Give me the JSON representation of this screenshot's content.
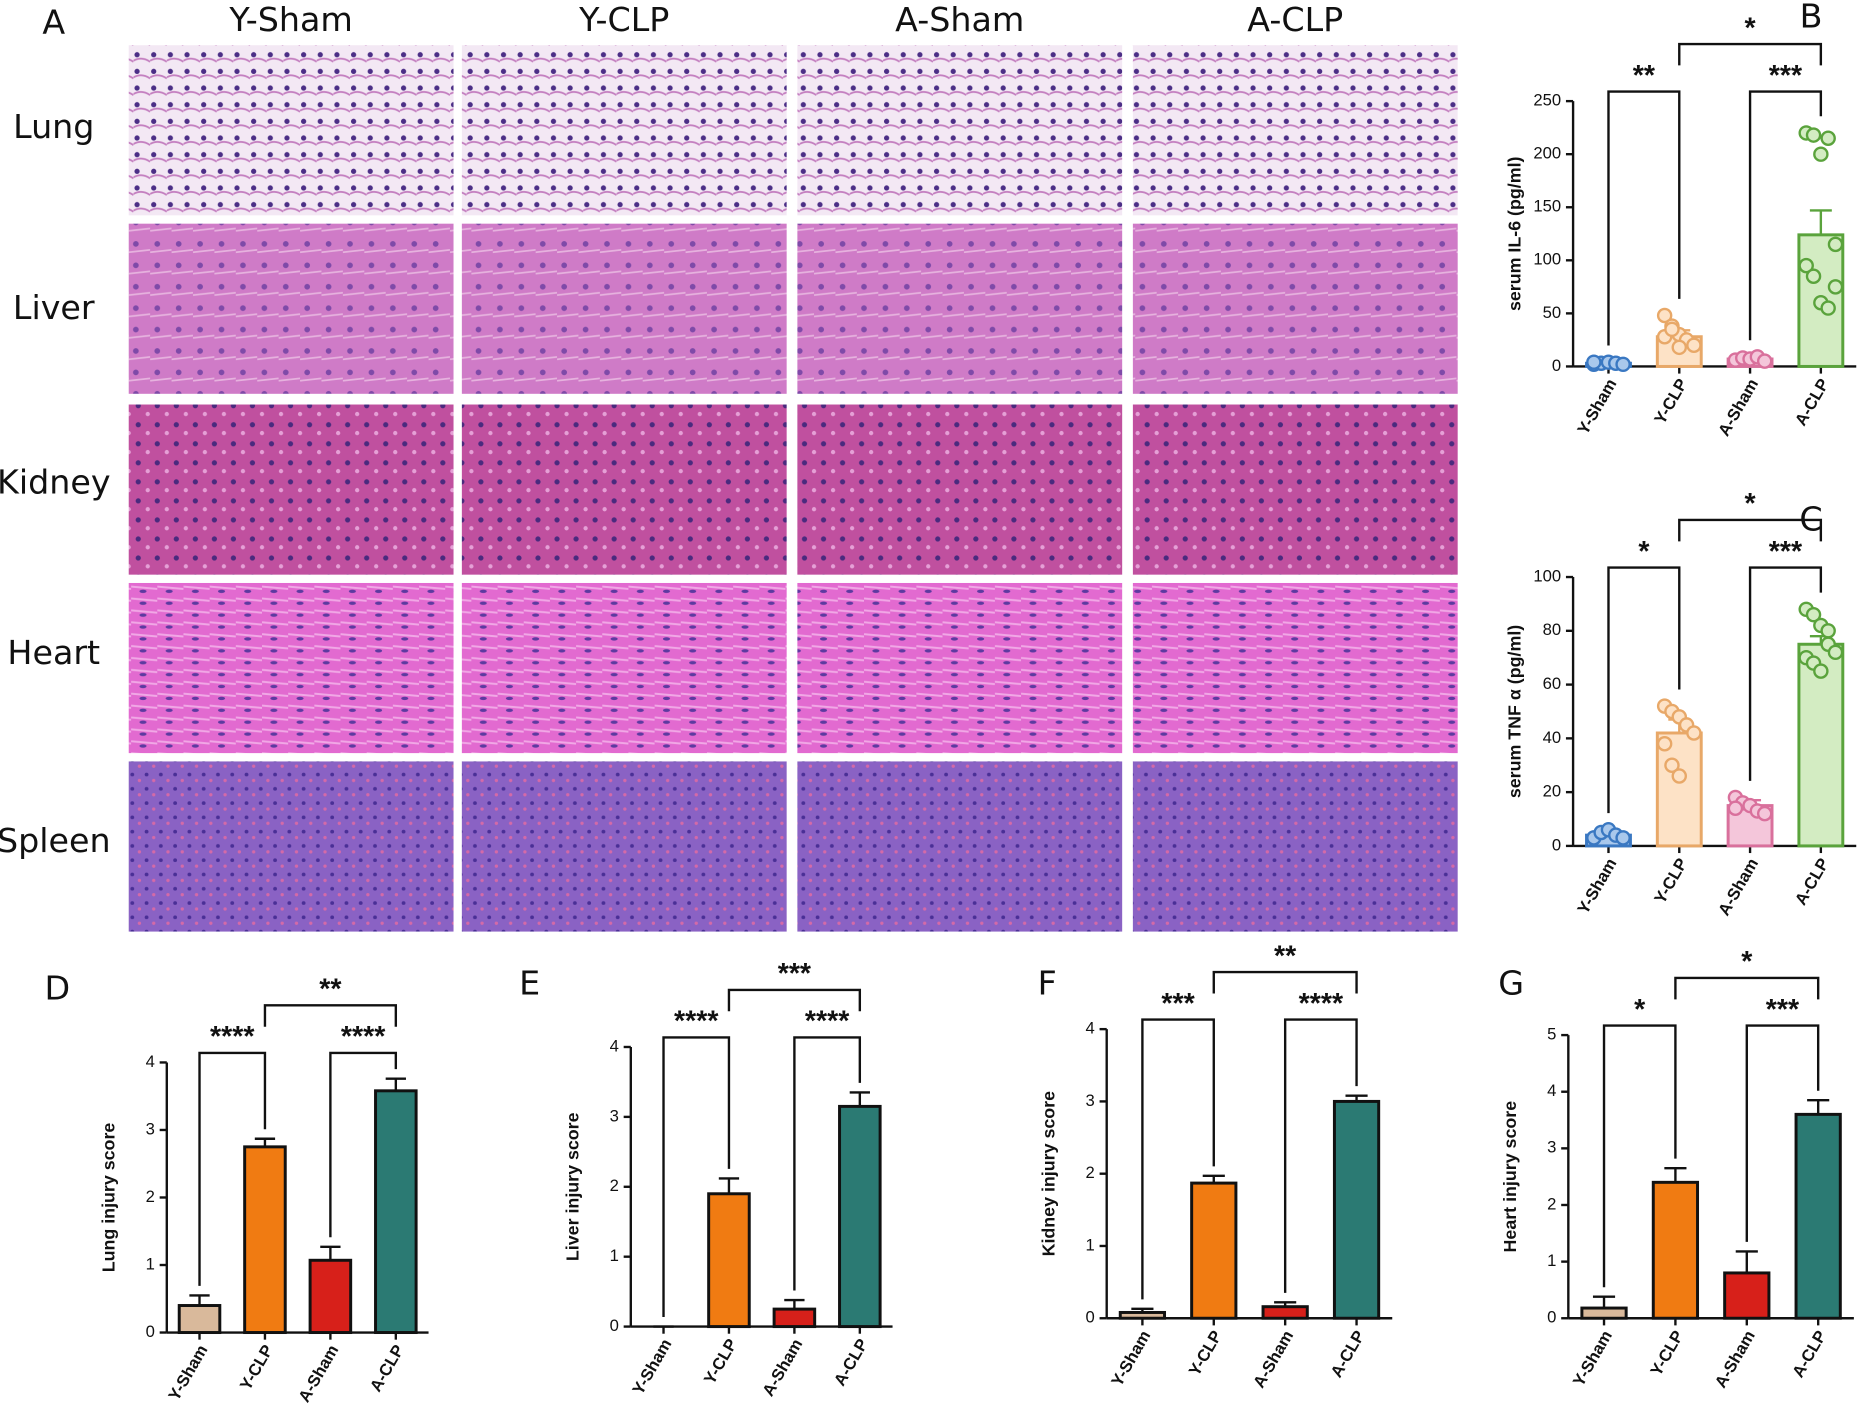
{
  "histology": {
    "label": "A",
    "columns": [
      "Y-Sham",
      "Y-CLP",
      "A-Sham",
      "A-CLP"
    ],
    "rows": [
      "Lung",
      "Liver",
      "Kidney",
      "Heart",
      "Spleen"
    ]
  },
  "chart_data": [
    {
      "type": "bar",
      "label": "B",
      "ylabel": "serum IL-6 (pg/ml)",
      "categories": [
        "Y-Sham",
        "Y-CLP",
        "A-Sham",
        "A-CLP"
      ],
      "values": [
        3,
        28,
        7,
        124
      ],
      "errors": [
        1,
        6,
        1,
        23
      ],
      "points": [
        [
          2,
          3,
          4,
          3,
          2,
          4
        ],
        [
          48,
          38,
          30,
          25,
          20,
          28,
          35,
          18
        ],
        [
          6,
          8,
          7,
          9,
          5
        ],
        [
          220,
          218,
          200,
          215,
          115,
          95,
          85,
          60,
          55,
          75
        ]
      ],
      "colors": [
        "#3a78c2",
        "#e8a868",
        "#d9709c",
        "#5aa33c"
      ],
      "fills": [
        "#a9c8ec",
        "#fde2c6",
        "#f4c6da",
        "#d3ecc2"
      ],
      "ylim": [
        0,
        250
      ],
      "yticks": [
        0,
        50,
        100,
        150,
        200,
        250
      ],
      "significance": [
        {
          "pair": [
            "Y-Sham",
            "Y-CLP"
          ],
          "label": "**"
        },
        {
          "pair": [
            "A-Sham",
            "A-CLP"
          ],
          "label": "***"
        },
        {
          "pair": [
            "Y-CLP",
            "A-CLP"
          ],
          "label": "*"
        }
      ]
    },
    {
      "type": "bar",
      "label": "C",
      "ylabel": "serum TNF α  (pg/ml)",
      "categories": [
        "Y-Sham",
        "Y-CLP",
        "A-Sham",
        "A-CLP"
      ],
      "values": [
        4,
        42,
        15,
        75
      ],
      "errors": [
        1,
        5,
        2,
        3
      ],
      "points": [
        [
          3,
          5,
          6,
          4,
          3
        ],
        [
          52,
          50,
          48,
          45,
          42,
          38,
          30,
          26
        ],
        [
          18,
          16,
          15,
          13,
          12,
          14
        ],
        [
          88,
          86,
          82,
          75,
          72,
          70,
          68,
          65,
          80
        ]
      ],
      "colors": [
        "#3a78c2",
        "#e8a868",
        "#d9709c",
        "#5aa33c"
      ],
      "fills": [
        "#a9c8ec",
        "#fde2c6",
        "#f4c6da",
        "#d3ecc2"
      ],
      "ylim": [
        0,
        100
      ],
      "yticks": [
        0,
        20,
        40,
        60,
        80,
        100
      ],
      "significance": [
        {
          "pair": [
            "Y-Sham",
            "Y-CLP"
          ],
          "label": "*"
        },
        {
          "pair": [
            "A-Sham",
            "A-CLP"
          ],
          "label": "***"
        },
        {
          "pair": [
            "Y-CLP",
            "A-CLP"
          ],
          "label": "*"
        }
      ]
    },
    {
      "type": "bar",
      "label": "D",
      "ylabel": "Lung injury score",
      "categories": [
        "Y-Sham",
        "Y-CLP",
        "A-Sham",
        "A-CLP"
      ],
      "values": [
        0.4,
        2.75,
        1.07,
        3.58
      ],
      "errors": [
        0.15,
        0.12,
        0.2,
        0.18
      ],
      "colors": [
        "#d9b99b",
        "#f07b12",
        "#d7201a",
        "#2b7a73"
      ],
      "edgecolor": "#111111",
      "ylim": [
        0,
        4
      ],
      "yticks": [
        0,
        1,
        2,
        3,
        4
      ],
      "significance": [
        {
          "pair": [
            "Y-Sham",
            "Y-CLP"
          ],
          "label": "****"
        },
        {
          "pair": [
            "A-Sham",
            "A-CLP"
          ],
          "label": "****"
        },
        {
          "pair": [
            "Y-CLP",
            "A-CLP"
          ],
          "label": "**"
        }
      ]
    },
    {
      "type": "bar",
      "label": "E",
      "ylabel": "Liver injury score",
      "categories": [
        "Y-Sham",
        "Y-CLP",
        "A-Sham",
        "A-CLP"
      ],
      "values": [
        0,
        1.9,
        0.25,
        3.15
      ],
      "errors": [
        0,
        0.22,
        0.13,
        0.2
      ],
      "colors": [
        "#d9b99b",
        "#f07b12",
        "#d7201a",
        "#2b7a73"
      ],
      "edgecolor": "#111111",
      "ylim": [
        0,
        4
      ],
      "yticks": [
        0,
        1,
        2,
        3,
        4
      ],
      "significance": [
        {
          "pair": [
            "Y-Sham",
            "Y-CLP"
          ],
          "label": "****"
        },
        {
          "pair": [
            "A-Sham",
            "A-CLP"
          ],
          "label": "****"
        },
        {
          "pair": [
            "Y-CLP",
            "A-CLP"
          ],
          "label": "***"
        }
      ]
    },
    {
      "type": "bar",
      "label": "F",
      "ylabel": "Kidney injury score",
      "categories": [
        "Y-Sham",
        "Y-CLP",
        "A-Sham",
        "A-CLP"
      ],
      "values": [
        0.08,
        1.87,
        0.16,
        3.0
      ],
      "errors": [
        0.05,
        0.1,
        0.06,
        0.08
      ],
      "colors": [
        "#d9b99b",
        "#f07b12",
        "#d7201a",
        "#2b7a73"
      ],
      "edgecolor": "#111111",
      "ylim": [
        0,
        4
      ],
      "yticks": [
        0,
        1,
        2,
        3,
        4
      ],
      "significance": [
        {
          "pair": [
            "Y-Sham",
            "Y-CLP"
          ],
          "label": "***"
        },
        {
          "pair": [
            "A-Sham",
            "A-CLP"
          ],
          "label": "****"
        },
        {
          "pair": [
            "Y-CLP",
            "A-CLP"
          ],
          "label": "**"
        }
      ]
    },
    {
      "type": "bar",
      "label": "G",
      "ylabel": "Heart injury score",
      "categories": [
        "Y-Sham",
        "Y-CLP",
        "A-Sham",
        "A-CLP"
      ],
      "values": [
        0.18,
        2.4,
        0.8,
        3.6
      ],
      "errors": [
        0.2,
        0.25,
        0.38,
        0.25
      ],
      "colors": [
        "#d9b99b",
        "#f07b12",
        "#d7201a",
        "#2b7a73"
      ],
      "edgecolor": "#111111",
      "ylim": [
        0,
        5
      ],
      "yticks": [
        0,
        1,
        2,
        3,
        4,
        5
      ],
      "significance": [
        {
          "pair": [
            "Y-Sham",
            "Y-CLP"
          ],
          "label": "*"
        },
        {
          "pair": [
            "A-Sham",
            "A-CLP"
          ],
          "label": "***"
        },
        {
          "pair": [
            "Y-CLP",
            "A-CLP"
          ],
          "label": "*"
        }
      ]
    }
  ]
}
